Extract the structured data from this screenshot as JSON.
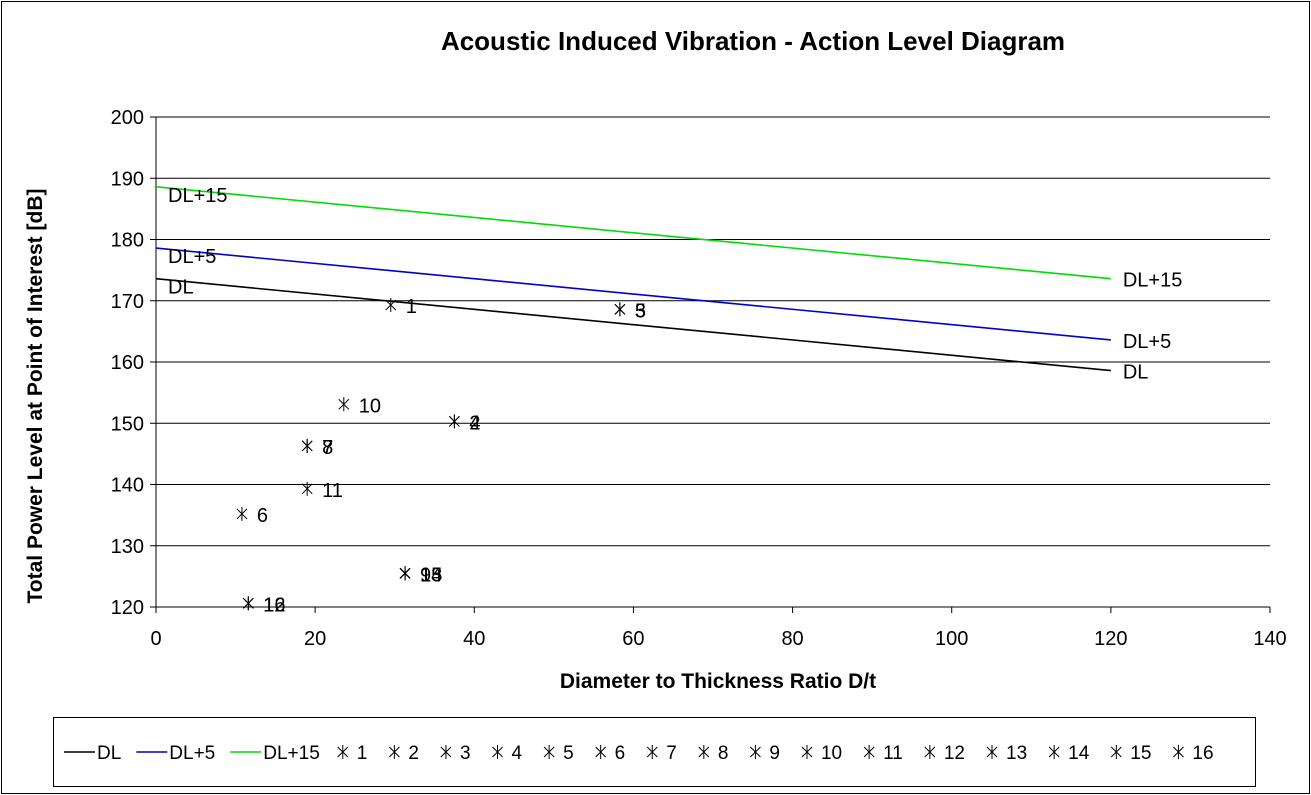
{
  "chart_data": {
    "type": "scatter",
    "title": "Acoustic Induced Vibration - Action Level  Diagram",
    "xlabel": "Diameter to Thickness Ratio D/t",
    "ylabel": "Total Power Level at Point of Interest [dB]",
    "xlim": [
      0,
      140
    ],
    "ylim": [
      120,
      200
    ],
    "xticks": [
      "0",
      "20",
      "40",
      "60",
      "80",
      "100",
      "120",
      "140"
    ],
    "yticks": [
      "120",
      "130",
      "140",
      "150",
      "160",
      "170",
      "180",
      "190",
      "200"
    ],
    "grid": "horizontal",
    "legend_position": "bottom",
    "lines": [
      {
        "name": "DL",
        "color": "#000000",
        "x": [
          0,
          120
        ],
        "y": [
          173.6,
          158.6
        ],
        "end_label": "DL"
      },
      {
        "name": "DL+5",
        "color": "#0000cc",
        "x": [
          0,
          120
        ],
        "y": [
          178.6,
          163.6
        ],
        "end_label": "DL+5"
      },
      {
        "name": "DL+15",
        "color": "#00dd00",
        "x": [
          0,
          120
        ],
        "y": [
          188.6,
          173.6
        ],
        "end_label": "DL+15"
      }
    ],
    "points": [
      {
        "name": "1",
        "x": 29.5,
        "y": 169.3
      },
      {
        "name": "2",
        "x": 37.5,
        "y": 150.3
      },
      {
        "name": "3",
        "x": 58.3,
        "y": 168.6
      },
      {
        "name": "4",
        "x": 37.5,
        "y": 150.3
      },
      {
        "name": "5",
        "x": 58.3,
        "y": 168.6
      },
      {
        "name": "6",
        "x": 10.8,
        "y": 135.2
      },
      {
        "name": "7",
        "x": 19,
        "y": 146.3
      },
      {
        "name": "8",
        "x": 19,
        "y": 146.3
      },
      {
        "name": "9",
        "x": 31.3,
        "y": 125.5
      },
      {
        "name": "10",
        "x": 23.6,
        "y": 153.1
      },
      {
        "name": "11",
        "x": 19,
        "y": 139.3
      },
      {
        "name": "12",
        "x": 11.6,
        "y": 120.6
      },
      {
        "name": "13",
        "x": 31.3,
        "y": 125.5
      },
      {
        "name": "14",
        "x": 31.3,
        "y": 125.5
      },
      {
        "name": "15",
        "x": 31.3,
        "y": 125.5
      },
      {
        "name": "16",
        "x": 11.6,
        "y": 120.6
      }
    ],
    "legend": [
      "DL",
      "DL+5",
      "DL+15",
      "1",
      "2",
      "3",
      "4",
      "5",
      "6",
      "7",
      "8",
      "9",
      "10",
      "11",
      "12",
      "13",
      "14",
      "15",
      "16"
    ]
  }
}
